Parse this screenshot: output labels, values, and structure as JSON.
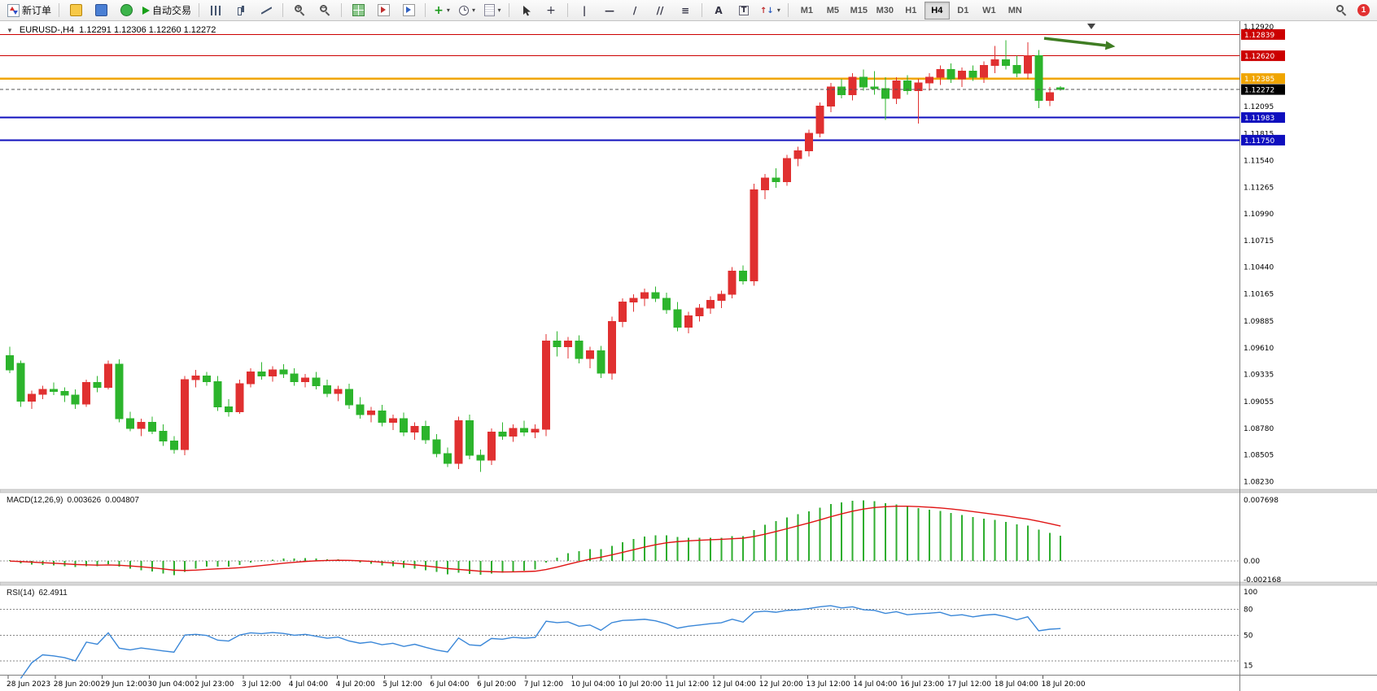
{
  "toolbar": {
    "new_order_label": "新订单",
    "auto_trading_label": "自动交易",
    "timeframes": [
      "M1",
      "M5",
      "M15",
      "M30",
      "H1",
      "H4",
      "D1",
      "W1",
      "MN"
    ],
    "active_timeframe": "H4",
    "notification_badge": "1"
  },
  "chart": {
    "title_symbol": "EURUSD-,H4",
    "title_ohlc": "1.12291 1.12306 1.12260 1.12272"
  },
  "chart_data": {
    "type": "candlestick",
    "symbol": "EURUSD-",
    "period": "H4",
    "open": "1.12291",
    "high": "1.12306",
    "low": "1.12260",
    "close": "1.12272",
    "colors": {
      "up": "#e03030",
      "down": "#2cb42c",
      "macd_hist": "#2fae2f",
      "macd_signal": "#e01515",
      "rsi_line": "#3a87d8",
      "arrow": "#3f7d23"
    },
    "price_axis": {
      "top": 1.1296,
      "bottom": 1.0815,
      "ticks": [
        "1.12920",
        "1.12095",
        "1.11815",
        "1.11540",
        "1.11265",
        "1.10990",
        "1.10715",
        "1.10440",
        "1.10165",
        "1.09885",
        "1.09610",
        "1.09335",
        "1.09055",
        "1.08780",
        "1.08505",
        "1.08230"
      ]
    },
    "horizontal_lines": [
      {
        "price": 1.12839,
        "label": "1.12839",
        "color": "#cc0000",
        "width": 1.2
      },
      {
        "price": 1.1262,
        "label": "1.12620",
        "color": "#cc0000",
        "width": 1.2
      },
      {
        "price": 1.12385,
        "label": "1.12385",
        "color": "#f0a500",
        "width": 2.5
      },
      {
        "price": 1.11983,
        "label": "1.11983",
        "color": "#0f0fbe",
        "width": 2
      },
      {
        "price": 1.1175,
        "label": "1.11750",
        "color": "#0f0fbe",
        "width": 2
      }
    ],
    "current_price": {
      "value": 1.12272,
      "label": "1.12272"
    },
    "trend_arrow": {
      "from_index": 94.5,
      "from_price": 1.128,
      "to_index": 101,
      "to_price": 1.12715
    },
    "candles": [
      [
        1.0953,
        1.0962,
        1.0935,
        1.0938
      ],
      [
        1.0945,
        1.0948,
        1.09,
        1.0906
      ],
      [
        1.0906,
        1.0917,
        1.0898,
        1.0913
      ],
      [
        1.0913,
        1.0922,
        1.0908,
        1.0918
      ],
      [
        1.0918,
        1.0925,
        1.0912,
        1.0916
      ],
      [
        1.0916,
        1.092,
        1.0905,
        1.0912
      ],
      [
        1.0912,
        1.0918,
        1.0898,
        1.0903
      ],
      [
        1.0903,
        1.0928,
        1.09,
        1.0925
      ],
      [
        1.0925,
        1.0932,
        1.0915,
        1.092
      ],
      [
        1.092,
        1.0948,
        1.0918,
        1.0944
      ],
      [
        1.0944,
        1.0949,
        1.0884,
        1.0888
      ],
      [
        1.0888,
        1.0895,
        1.0875,
        1.0878
      ],
      [
        1.0878,
        1.0888,
        1.087,
        1.0884
      ],
      [
        1.0884,
        1.089,
        1.0872,
        1.0875
      ],
      [
        1.0875,
        1.0882,
        1.086,
        1.0865
      ],
      [
        1.0865,
        1.087,
        1.0852,
        1.0856
      ],
      [
        1.0856,
        1.0932,
        1.085,
        1.0928
      ],
      [
        1.0928,
        1.0938,
        1.092,
        1.0932
      ],
      [
        1.0932,
        1.0936,
        1.0922,
        1.0926
      ],
      [
        1.0926,
        1.0932,
        1.0896,
        1.09
      ],
      [
        1.09,
        1.0908,
        1.089,
        1.0895
      ],
      [
        1.0895,
        1.0928,
        1.0893,
        1.0924
      ],
      [
        1.0924,
        1.094,
        1.092,
        1.0936
      ],
      [
        1.0936,
        1.0946,
        1.0928,
        1.0932
      ],
      [
        1.0932,
        1.0942,
        1.0926,
        1.0938
      ],
      [
        1.0938,
        1.0944,
        1.093,
        1.0934
      ],
      [
        1.0934,
        1.094,
        1.0922,
        1.0926
      ],
      [
        1.0926,
        1.0934,
        1.092,
        1.093
      ],
      [
        1.093,
        1.0936,
        1.0918,
        1.0922
      ],
      [
        1.0922,
        1.0928,
        1.091,
        1.0914
      ],
      [
        1.0914,
        1.0922,
        1.0906,
        1.0918
      ],
      [
        1.0918,
        1.0924,
        1.0898,
        1.0902
      ],
      [
        1.0902,
        1.091,
        1.0888,
        1.0892
      ],
      [
        1.0892,
        1.09,
        1.0884,
        1.0896
      ],
      [
        1.0896,
        1.0902,
        1.088,
        1.0884
      ],
      [
        1.0884,
        1.0892,
        1.0876,
        1.0888
      ],
      [
        1.0888,
        1.0894,
        1.087,
        1.0874
      ],
      [
        1.0874,
        1.0884,
        1.0866,
        1.088
      ],
      [
        1.088,
        1.0886,
        1.0862,
        1.0866
      ],
      [
        1.0866,
        1.0872,
        1.0848,
        1.0852
      ],
      [
        1.0852,
        1.0858,
        1.0838,
        1.0842
      ],
      [
        1.0842,
        1.089,
        1.0836,
        1.0886
      ],
      [
        1.0886,
        1.0892,
        1.0846,
        1.085
      ],
      [
        1.085,
        1.0856,
        1.0833,
        1.0845
      ],
      [
        1.0845,
        1.0878,
        1.084,
        1.0874
      ],
      [
        1.0874,
        1.0884,
        1.0866,
        1.087
      ],
      [
        1.087,
        1.0882,
        1.0864,
        1.0878
      ],
      [
        1.0878,
        1.0886,
        1.087,
        1.0874
      ],
      [
        1.0874,
        1.0882,
        1.0868,
        1.0877
      ],
      [
        1.0877,
        1.0975,
        1.087,
        1.0968
      ],
      [
        1.0968,
        1.0978,
        1.0952,
        1.0962
      ],
      [
        1.0962,
        1.0972,
        1.095,
        1.0968
      ],
      [
        1.0968,
        1.0974,
        1.0945,
        1.095
      ],
      [
        1.095,
        1.0962,
        1.094,
        1.0958
      ],
      [
        1.0958,
        1.0963,
        1.093,
        1.0935
      ],
      [
        1.0935,
        1.0993,
        1.0928,
        1.0988
      ],
      [
        1.0988,
        1.1012,
        1.0982,
        1.1008
      ],
      [
        1.1008,
        1.1016,
        1.0998,
        1.1012
      ],
      [
        1.1012,
        1.1022,
        1.1004,
        1.1018
      ],
      [
        1.1018,
        1.1024,
        1.1008,
        1.1012
      ],
      [
        1.1012,
        1.1018,
        1.0996,
        1.1
      ],
      [
        1.1,
        1.1008,
        1.0978,
        1.0982
      ],
      [
        1.0982,
        1.0998,
        1.0976,
        1.0994
      ],
      [
        1.0994,
        1.1006,
        1.0988,
        1.1002
      ],
      [
        1.1002,
        1.1014,
        1.0996,
        1.101
      ],
      [
        1.101,
        1.102,
        1.1002,
        1.1016
      ],
      [
        1.1016,
        1.1044,
        1.1012,
        1.104
      ],
      [
        1.104,
        1.1046,
        1.1026,
        1.103
      ],
      [
        1.103,
        1.113,
        1.1025,
        1.1124
      ],
      [
        1.1124,
        1.114,
        1.1114,
        1.1136
      ],
      [
        1.1136,
        1.1146,
        1.1126,
        1.1132
      ],
      [
        1.1132,
        1.116,
        1.1128,
        1.1156
      ],
      [
        1.1156,
        1.1168,
        1.1148,
        1.1164
      ],
      [
        1.1164,
        1.1186,
        1.1158,
        1.1182
      ],
      [
        1.1182,
        1.1214,
        1.1178,
        1.121
      ],
      [
        1.121,
        1.1234,
        1.1204,
        1.123
      ],
      [
        1.123,
        1.1238,
        1.1218,
        1.1222
      ],
      [
        1.1222,
        1.1244,
        1.1216,
        1.124
      ],
      [
        1.124,
        1.1248,
        1.1226,
        1.123
      ],
      [
        1.123,
        1.1246,
        1.1222,
        1.1228
      ],
      [
        1.1228,
        1.124,
        1.1196,
        1.1218
      ],
      [
        1.1218,
        1.124,
        1.1212,
        1.1236
      ],
      [
        1.1236,
        1.1242,
        1.1222,
        1.1226
      ],
      [
        1.1226,
        1.1238,
        1.1192,
        1.1234
      ],
      [
        1.1234,
        1.1244,
        1.1226,
        1.124
      ],
      [
        1.124,
        1.1252,
        1.1232,
        1.1248
      ],
      [
        1.1248,
        1.1254,
        1.1234,
        1.1238
      ],
      [
        1.1238,
        1.125,
        1.123,
        1.1246
      ],
      [
        1.1246,
        1.1252,
        1.1236,
        1.124
      ],
      [
        1.124,
        1.1256,
        1.1234,
        1.1252
      ],
      [
        1.1252,
        1.1272,
        1.1244,
        1.1258
      ],
      [
        1.1258,
        1.1278,
        1.1248,
        1.1252
      ],
      [
        1.1252,
        1.1262,
        1.124,
        1.1244
      ],
      [
        1.1244,
        1.1276,
        1.1238,
        1.1262
      ],
      [
        1.1262,
        1.1268,
        1.1208,
        1.1216
      ],
      [
        1.1216,
        1.123,
        1.121,
        1.1224
      ],
      [
        1.12291,
        1.12306,
        1.1226,
        1.12272
      ]
    ],
    "x_labels": [
      "28 Jun 2023",
      "28 Jun 20:00",
      "29 Jun 12:00",
      "30 Jun 04:00",
      "2 Jul 23:00",
      "3 Jul 12:00",
      "4 Jul 04:00",
      "4 Jul 20:00",
      "5 Jul 12:00",
      "6 Jul 04:00",
      "6 Jul 20:00",
      "7 Jul 12:00",
      "10 Jul 04:00",
      "10 Jul 20:00",
      "11 Jul 12:00",
      "12 Jul 04:00",
      "12 Jul 20:00",
      "13 Jul 12:00",
      "14 Jul 04:00",
      "16 Jul 23:00",
      "17 Jul 12:00",
      "18 Jul 04:00",
      "18 Jul 20:00"
    ],
    "macd": {
      "name": "MACD(12,26,9)",
      "value": "0.003626",
      "signal": "0.004807",
      "axis_labels": [
        "0.007698",
        "0.00",
        "-0.002168"
      ]
    },
    "rsi": {
      "name": "RSI(14)",
      "value": "62.4911",
      "axis_labels": [
        "100",
        "80",
        "50",
        "15"
      ],
      "levels": [
        80,
        50,
        20
      ]
    }
  }
}
